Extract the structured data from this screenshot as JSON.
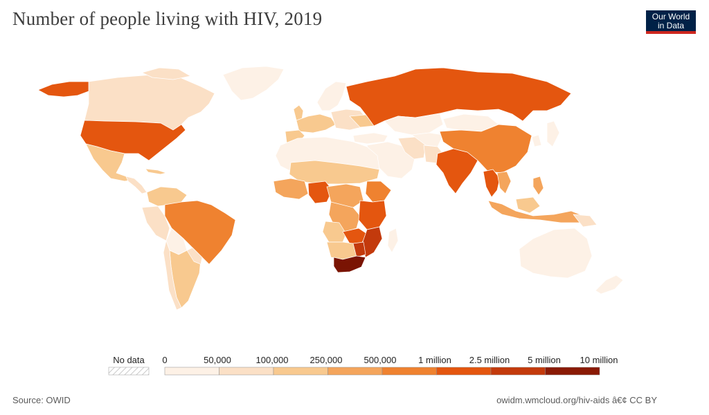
{
  "header": {
    "title": "Number of people living with HIV, 2019",
    "logo_line1": "Our World",
    "logo_line2": "in Data"
  },
  "legend": {
    "no_data_label": "No data",
    "bins": [
      {
        "label": "0",
        "color": "#fdf1e6"
      },
      {
        "label": "50,000",
        "color": "#fbe0c6"
      },
      {
        "label": "100,000",
        "color": "#f8c98f"
      },
      {
        "label": "250,000",
        "color": "#f4a55c"
      },
      {
        "label": "500,000",
        "color": "#ef8230"
      },
      {
        "label": "1 million",
        "color": "#e4560f"
      },
      {
        "label": "2.5 million",
        "color": "#c33a0c"
      },
      {
        "label": "5 million",
        "color": "#8a1a05"
      },
      {
        "label": "10 million",
        "color": ""
      }
    ]
  },
  "footer": {
    "source": "Source: OWID",
    "url": "owidm.wmcloud.org/hiv-aids â€¢ CC BY"
  },
  "map_regions": [
    {
      "name": "south-africa",
      "value_bin": "5 million",
      "color": "#7a1403"
    },
    {
      "name": "russia",
      "value_bin": "1 million",
      "color": "#e4560f"
    },
    {
      "name": "united-states",
      "value_bin": "1 million",
      "color": "#e4560f"
    },
    {
      "name": "india",
      "value_bin": "1 million",
      "color": "#e4560f"
    },
    {
      "name": "mozambique",
      "value_bin": "2.5 million",
      "color": "#c33a0c"
    },
    {
      "name": "brazil",
      "value_bin": "500,000",
      "color": "#ef8230"
    },
    {
      "name": "china",
      "value_bin": "500,000",
      "color": "#ef8230"
    },
    {
      "name": "canada",
      "value_bin": "50,000",
      "color": "#fbe0c6"
    },
    {
      "name": "australia",
      "value_bin": "0",
      "color": "#fdf1e6"
    }
  ]
}
